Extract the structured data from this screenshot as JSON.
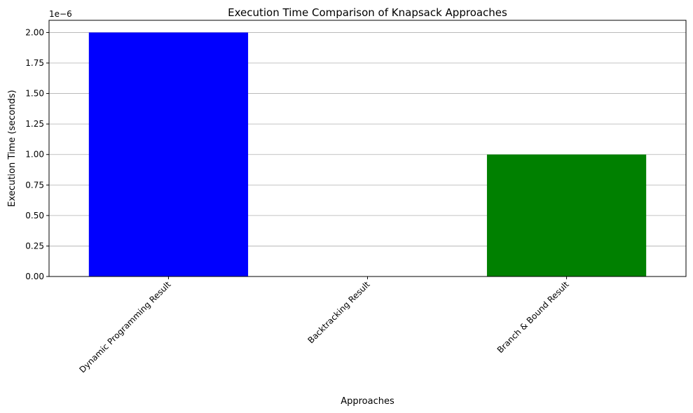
{
  "chart_data": {
    "type": "bar",
    "title": "Execution Time Comparison of Knapsack Approaches",
    "xlabel": "Approaches",
    "ylabel": "Execution Time (seconds)",
    "categories": [
      "Dynamic Programming Result",
      "Backtracking Result",
      "Branch & Bound Result"
    ],
    "values": [
      2e-06,
      0.0,
      1e-06
    ],
    "colors": [
      "#0000ff",
      "#ff0000",
      "#008000"
    ],
    "ylim": [
      0,
      2.1e-06
    ],
    "yticks": [
      0,
      2.5e-07,
      5e-07,
      7.5e-07,
      1e-06,
      1.25e-06,
      1.5e-06,
      1.75e-06,
      2e-06
    ],
    "ytick_labels": [
      "0.00",
      "0.25",
      "0.50",
      "0.75",
      "1.00",
      "1.25",
      "1.50",
      "1.75",
      "2.00"
    ],
    "y_offset_label": "1e−6",
    "grid": "y",
    "legend": "none"
  }
}
